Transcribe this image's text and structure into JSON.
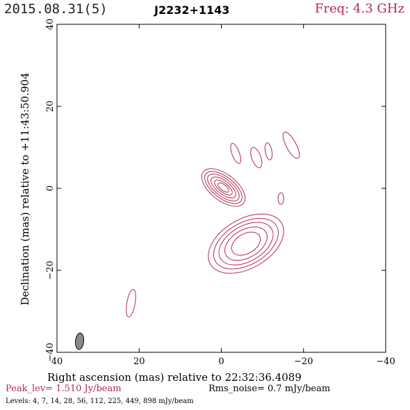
{
  "header": {
    "date_label": "2015.08.31(5)",
    "source_label": "J2232+1143",
    "freq_label": "Freq: 4.3 GHz",
    "accent_color": "#b22a4e"
  },
  "footer": {
    "peak_label": "Peak_lev=  1.510 Jy/beam",
    "rms_label": "Rms_noise=  0.7 mJy/beam",
    "levels_label": "Levels:   4,   7,  14,  28,  56, 112, 225, 449, 898 mJy/beam"
  },
  "chart_data": {
    "type": "contour",
    "xlabel": "Right ascension (mas) relative to 22:32:36.4089",
    "ylabel": "Declination (mas) relative to +11:43:50.904",
    "xlim": [
      40,
      -40
    ],
    "ylim": [
      -40,
      40
    ],
    "x_ticks": [
      40,
      20,
      0,
      -20,
      -40
    ],
    "y_ticks": [
      40,
      20,
      0,
      -20,
      -40
    ],
    "x_tick_labels": [
      "40",
      "20",
      "0",
      "−20",
      "−40"
    ],
    "y_tick_labels": [
      "40",
      "20",
      "0",
      "−20",
      "−40"
    ],
    "contour_levels_mJy": [
      4,
      7,
      14,
      28,
      56,
      112,
      225,
      449,
      898
    ],
    "peak_Jy_per_beam": 1.51,
    "rms_mJy_per_beam": 0.7,
    "contour_color": "#b22a4e",
    "beam": {
      "ra": 34.5,
      "dec": -37.3,
      "major_mas": 4.0,
      "minor_mas": 2.0,
      "pa_deg": 5,
      "fill": "#888888"
    },
    "jet_component": {
      "center": [
        -0.5,
        0.2
      ],
      "levels": [
        {
          "sx": 3.2,
          "sy": 6.2,
          "pa": -52
        },
        {
          "sx": 2.6,
          "sy": 5.4,
          "pa": -52
        },
        {
          "sx": 2.1,
          "sy": 4.6,
          "pa": -52
        },
        {
          "sx": 1.6,
          "sy": 3.6,
          "pa": -52
        },
        {
          "sx": 1.1,
          "sy": 2.6,
          "pa": -52
        },
        {
          "sx": 0.7,
          "sy": 1.6,
          "pa": -52
        }
      ]
    },
    "extended_component": {
      "center": [
        -6.0,
        -13.5
      ],
      "levels": [
        {
          "sx": 10.0,
          "sy": 6.0,
          "pa": -30
        },
        {
          "sx": 8.6,
          "sy": 5.1,
          "pa": -30
        },
        {
          "sx": 7.2,
          "sy": 4.3,
          "pa": -30
        },
        {
          "sx": 5.6,
          "sy": 3.4,
          "pa": -30
        },
        {
          "sx": 3.8,
          "sy": 2.4,
          "pa": -30
        }
      ]
    },
    "isolated_components": [
      {
        "ra": -3.5,
        "dec": 8.5,
        "sx": 0.9,
        "sy": 2.6,
        "pa": -20
      },
      {
        "ra": -8.5,
        "dec": 7.5,
        "sx": 1.1,
        "sy": 2.6,
        "pa": -20
      },
      {
        "ra": -11.5,
        "dec": 9.0,
        "sx": 0.8,
        "sy": 2.1,
        "pa": -10
      },
      {
        "ra": -17.0,
        "dec": 10.5,
        "sx": 1.2,
        "sy": 3.6,
        "pa": -28
      },
      {
        "ra": -14.5,
        "dec": -2.5,
        "sx": 0.7,
        "sy": 1.4,
        "pa": 0
      },
      {
        "ra": 22.0,
        "dec": -28.0,
        "sx": 1.0,
        "sy": 3.4,
        "pa": 10
      }
    ]
  }
}
